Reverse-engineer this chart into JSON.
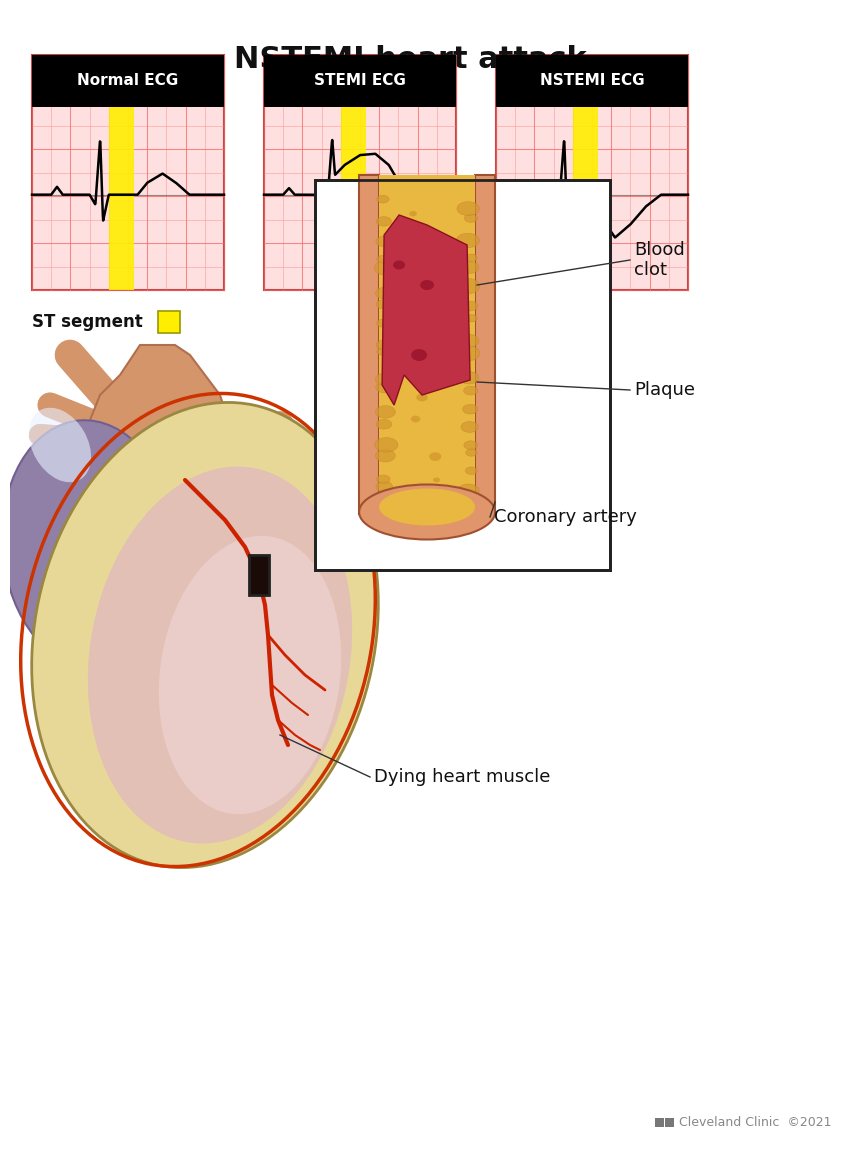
{
  "title": "NSTEMI heart attack",
  "title_fontsize": 22,
  "title_fontweight": "bold",
  "bg_color": "#ffffff",
  "ecg_labels": [
    "Normal ECG",
    "STEMI ECG",
    "NSTEMI ECG"
  ],
  "ecg_label_bg": "#000000",
  "ecg_label_color": "#ffffff",
  "ecg_grid_bg": "#ffe0e0",
  "ecg_grid_color": "#ff8888",
  "ecg_line_color": "#000000",
  "ecg_st_color": "#ffee00",
  "st_legend_text": "ST segment",
  "cleveland_text": "Cleveland Clinic  ©2021",
  "cleveland_color": "#888888"
}
